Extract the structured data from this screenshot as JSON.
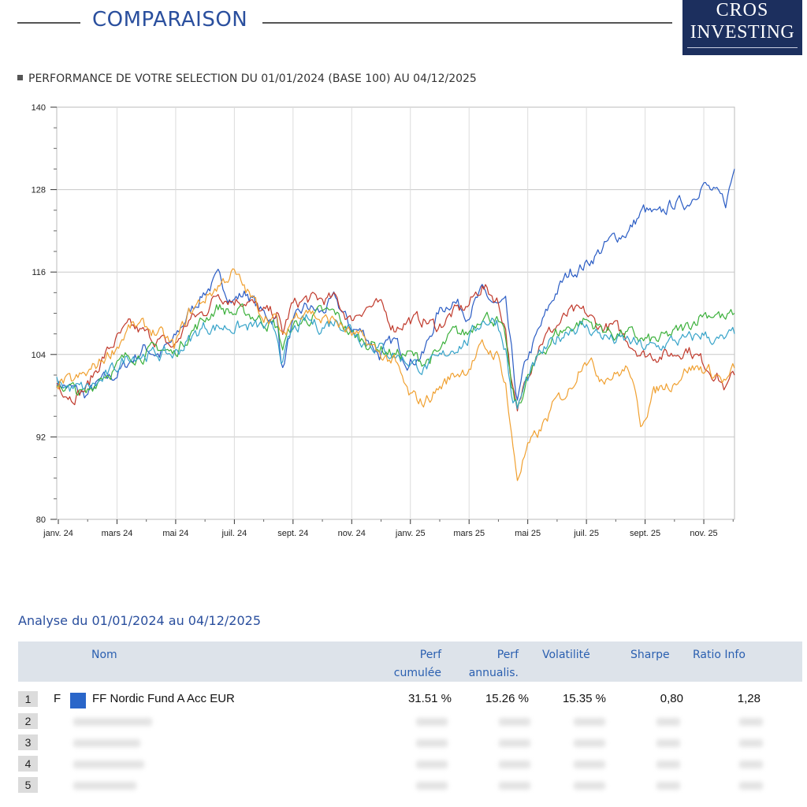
{
  "header": {
    "title": "COMPARAISON",
    "logo_line1": "CROS",
    "logo_line2": "INVESTING"
  },
  "subtitle": "PERFORMANCE DE VOTRE SELECTION DU 01/01/2024 (BASE 100) AU 04/12/2025",
  "chart_data": {
    "type": "line",
    "title": "PERFORMANCE DE VOTRE SELECTION DU 01/01/2024 (BASE 100) AU 04/12/2025",
    "ylim": [
      80,
      140
    ],
    "yticks": [
      80,
      92,
      104,
      116,
      128,
      140
    ],
    "x_tick_labels": [
      "janv. 24",
      "mars 24",
      "mai 24",
      "juil. 24",
      "sept. 24",
      "nov. 24",
      "janv. 25",
      "mars 25",
      "mai 25",
      "juil. 25",
      "sept. 25",
      "nov. 25"
    ],
    "x_tick_months": [
      0,
      2,
      4,
      6,
      8,
      10,
      12,
      14,
      16,
      18,
      20,
      22
    ],
    "x_range_months": [
      0,
      23.1
    ],
    "grid": true,
    "series": [
      {
        "name": "FF Nordic Fund A Acc EUR",
        "color": "#2a5cc4",
        "points": [
          [
            0,
            100
          ],
          [
            0.5,
            99
          ],
          [
            1,
            98
          ],
          [
            1.5,
            100
          ],
          [
            2,
            101
          ],
          [
            2.5,
            103
          ],
          [
            3,
            105
          ],
          [
            3.5,
            104
          ],
          [
            4,
            106
          ],
          [
            4.5,
            110
          ],
          [
            5,
            113
          ],
          [
            5.5,
            115
          ],
          [
            6,
            112
          ],
          [
            6.5,
            113
          ],
          [
            7,
            110
          ],
          [
            7.5,
            109
          ],
          [
            7.7,
            102
          ],
          [
            8,
            108
          ],
          [
            8.5,
            111
          ],
          [
            9,
            110
          ],
          [
            9.5,
            112
          ],
          [
            10,
            108
          ],
          [
            10.5,
            107
          ],
          [
            11,
            104
          ],
          [
            11.5,
            106
          ],
          [
            12,
            103
          ],
          [
            12.5,
            104
          ],
          [
            13,
            110
          ],
          [
            13.5,
            112
          ],
          [
            14,
            110
          ],
          [
            14.5,
            113
          ],
          [
            15,
            111
          ],
          [
            15.3,
            111
          ],
          [
            15.5,
            104
          ],
          [
            15.7,
            97
          ],
          [
            16,
            103
          ],
          [
            16.5,
            108
          ],
          [
            17,
            113
          ],
          [
            17.5,
            116
          ],
          [
            18,
            117
          ],
          [
            18.5,
            119
          ],
          [
            19,
            121
          ],
          [
            19.5,
            122
          ],
          [
            20,
            125
          ],
          [
            20.5,
            124
          ],
          [
            21,
            126
          ],
          [
            21.5,
            126
          ],
          [
            22,
            129
          ],
          [
            22.5,
            127
          ],
          [
            22.8,
            126
          ],
          [
            23.1,
            131
          ]
        ]
      },
      {
        "name": "Fonds 2",
        "color": "#c0392b",
        "points": [
          [
            0,
            100
          ],
          [
            0.5,
            98
          ],
          [
            1,
            99
          ],
          [
            1.5,
            103
          ],
          [
            2,
            106
          ],
          [
            2.5,
            108
          ],
          [
            3,
            107
          ],
          [
            3.5,
            106
          ],
          [
            4,
            105
          ],
          [
            4.5,
            109
          ],
          [
            5,
            110
          ],
          [
            5.5,
            113
          ],
          [
            6,
            112
          ],
          [
            6.5,
            112
          ],
          [
            7,
            110
          ],
          [
            7.5,
            110
          ],
          [
            7.7,
            107
          ],
          [
            8,
            111
          ],
          [
            8.5,
            112
          ],
          [
            9,
            112
          ],
          [
            9.5,
            112
          ],
          [
            10,
            109
          ],
          [
            10.5,
            111
          ],
          [
            11,
            111
          ],
          [
            11.5,
            108
          ],
          [
            12,
            109
          ],
          [
            12.5,
            109
          ],
          [
            13,
            108
          ],
          [
            13.5,
            110
          ],
          [
            14,
            111
          ],
          [
            14.5,
            114
          ],
          [
            15,
            112
          ],
          [
            15.3,
            108
          ],
          [
            15.5,
            100
          ],
          [
            15.7,
            95
          ],
          [
            16,
            101
          ],
          [
            16.5,
            106
          ],
          [
            17,
            108
          ],
          [
            17.5,
            110
          ],
          [
            18,
            110
          ],
          [
            18.5,
            108
          ],
          [
            19,
            108
          ],
          [
            19.5,
            106
          ],
          [
            20,
            104
          ],
          [
            20.5,
            104
          ],
          [
            21,
            104
          ],
          [
            21.5,
            105
          ],
          [
            22,
            103
          ],
          [
            22.5,
            101
          ],
          [
            22.8,
            99
          ],
          [
            23.1,
            101
          ]
        ]
      },
      {
        "name": "Fonds 3",
        "color": "#3bb03b",
        "points": [
          [
            0,
            100
          ],
          [
            0.5,
            99
          ],
          [
            1,
            98
          ],
          [
            1.5,
            101
          ],
          [
            2,
            102
          ],
          [
            2.5,
            104
          ],
          [
            3,
            104
          ],
          [
            3.5,
            105
          ],
          [
            4,
            104
          ],
          [
            4.5,
            107
          ],
          [
            5,
            109
          ],
          [
            5.5,
            111
          ],
          [
            6,
            110
          ],
          [
            6.5,
            110
          ],
          [
            7,
            109
          ],
          [
            7.5,
            108
          ],
          [
            7.7,
            105
          ],
          [
            8,
            108
          ],
          [
            8.5,
            109
          ],
          [
            9,
            110
          ],
          [
            9.5,
            110
          ],
          [
            10,
            107
          ],
          [
            10.5,
            106
          ],
          [
            11,
            105
          ],
          [
            11.5,
            104
          ],
          [
            12,
            104
          ],
          [
            12.5,
            103
          ],
          [
            13,
            104
          ],
          [
            13.5,
            107
          ],
          [
            14,
            107
          ],
          [
            14.5,
            110
          ],
          [
            15,
            109
          ],
          [
            15.3,
            106
          ],
          [
            15.5,
            99
          ],
          [
            15.7,
            96
          ],
          [
            16,
            100
          ],
          [
            16.5,
            104
          ],
          [
            17,
            107
          ],
          [
            17.5,
            108
          ],
          [
            18,
            109
          ],
          [
            18.5,
            108
          ],
          [
            19,
            107
          ],
          [
            19.5,
            107
          ],
          [
            20,
            106
          ],
          [
            20.5,
            106
          ],
          [
            21,
            107
          ],
          [
            21.5,
            108
          ],
          [
            22,
            110
          ],
          [
            22.5,
            110
          ],
          [
            22.8,
            109
          ],
          [
            23.1,
            110
          ]
        ]
      },
      {
        "name": "Fonds 4",
        "color": "#36a3c9",
        "points": [
          [
            0,
            100
          ],
          [
            0.5,
            99
          ],
          [
            1,
            99
          ],
          [
            1.5,
            100
          ],
          [
            2,
            102
          ],
          [
            2.5,
            104
          ],
          [
            3,
            104
          ],
          [
            3.5,
            104
          ],
          [
            4,
            104
          ],
          [
            4.5,
            106
          ],
          [
            5,
            108
          ],
          [
            5.5,
            108
          ],
          [
            6,
            108
          ],
          [
            6.5,
            108
          ],
          [
            7,
            108
          ],
          [
            7.5,
            107
          ],
          [
            7.7,
            103
          ],
          [
            8,
            107
          ],
          [
            8.5,
            109
          ],
          [
            9,
            108
          ],
          [
            9.5,
            109
          ],
          [
            10,
            108
          ],
          [
            10.5,
            106
          ],
          [
            11,
            105
          ],
          [
            11.5,
            104
          ],
          [
            12,
            103
          ],
          [
            12.5,
            102
          ],
          [
            13,
            103
          ],
          [
            13.5,
            105
          ],
          [
            14,
            106
          ],
          [
            14.5,
            109
          ],
          [
            15,
            109
          ],
          [
            15.3,
            105
          ],
          [
            15.5,
            98
          ],
          [
            15.7,
            96
          ],
          [
            16,
            100
          ],
          [
            16.5,
            104
          ],
          [
            17,
            106
          ],
          [
            17.5,
            108
          ],
          [
            18,
            108
          ],
          [
            18.5,
            107
          ],
          [
            19,
            106
          ],
          [
            19.5,
            106
          ],
          [
            20,
            105
          ],
          [
            20.5,
            105
          ],
          [
            21,
            106
          ],
          [
            21.5,
            106
          ],
          [
            22,
            107
          ],
          [
            22.5,
            106
          ],
          [
            22.8,
            106
          ],
          [
            23.1,
            107
          ]
        ]
      },
      {
        "name": "Fonds 5",
        "color": "#f0a030",
        "points": [
          [
            0,
            100
          ],
          [
            0.5,
            100
          ],
          [
            1,
            101
          ],
          [
            1.5,
            103
          ],
          [
            2,
            105
          ],
          [
            2.5,
            108
          ],
          [
            3,
            108
          ],
          [
            3.5,
            107
          ],
          [
            4,
            105
          ],
          [
            4.5,
            110
          ],
          [
            5,
            112
          ],
          [
            5.5,
            114
          ],
          [
            6,
            116
          ],
          [
            6.5,
            113
          ],
          [
            7,
            110
          ],
          [
            7.5,
            109
          ],
          [
            7.7,
            106
          ],
          [
            8,
            109
          ],
          [
            8.5,
            111
          ],
          [
            9,
            109
          ],
          [
            9.5,
            109
          ],
          [
            10,
            107
          ],
          [
            10.5,
            106
          ],
          [
            11,
            104
          ],
          [
            11.5,
            103
          ],
          [
            12,
            98
          ],
          [
            12.5,
            97
          ],
          [
            13,
            99
          ],
          [
            13.5,
            101
          ],
          [
            14,
            102
          ],
          [
            14.5,
            105
          ],
          [
            15,
            104
          ],
          [
            15.3,
            100
          ],
          [
            15.5,
            92
          ],
          [
            15.7,
            86
          ],
          [
            16,
            90
          ],
          [
            16.5,
            93
          ],
          [
            17,
            97
          ],
          [
            17.5,
            99
          ],
          [
            18,
            104
          ],
          [
            18.5,
            101
          ],
          [
            19,
            101
          ],
          [
            19.5,
            102
          ],
          [
            19.9,
            94
          ],
          [
            20.3,
            98
          ],
          [
            20.5,
            99
          ],
          [
            21,
            100
          ],
          [
            21.5,
            102
          ],
          [
            22,
            102
          ],
          [
            22.5,
            101
          ],
          [
            22.8,
            100
          ],
          [
            23.1,
            102
          ]
        ]
      }
    ]
  },
  "table": {
    "analyse_title": "Analyse du 01/01/2024 au 04/12/2025",
    "headers": {
      "nom": "Nom",
      "perf_cum_1": "Perf",
      "perf_cum_2": "cumulée",
      "perf_ann_1": "Perf",
      "perf_ann_2": "annualis.",
      "volatilite": "Volatilité",
      "sharpe": "Sharpe",
      "ratio_info": "Ratio Info"
    },
    "row1": {
      "num": "1",
      "type": "F",
      "name": "FF Nordic Fund A Acc EUR",
      "perf_cum": "31.51 %",
      "perf_ann": "15.26 %",
      "volatilite": "15.35 %",
      "sharpe": "0,80",
      "ratio_info": "1,28",
      "color": "#2a66c9"
    },
    "hidden_rows": [
      "2",
      "3",
      "4",
      "5"
    ]
  }
}
